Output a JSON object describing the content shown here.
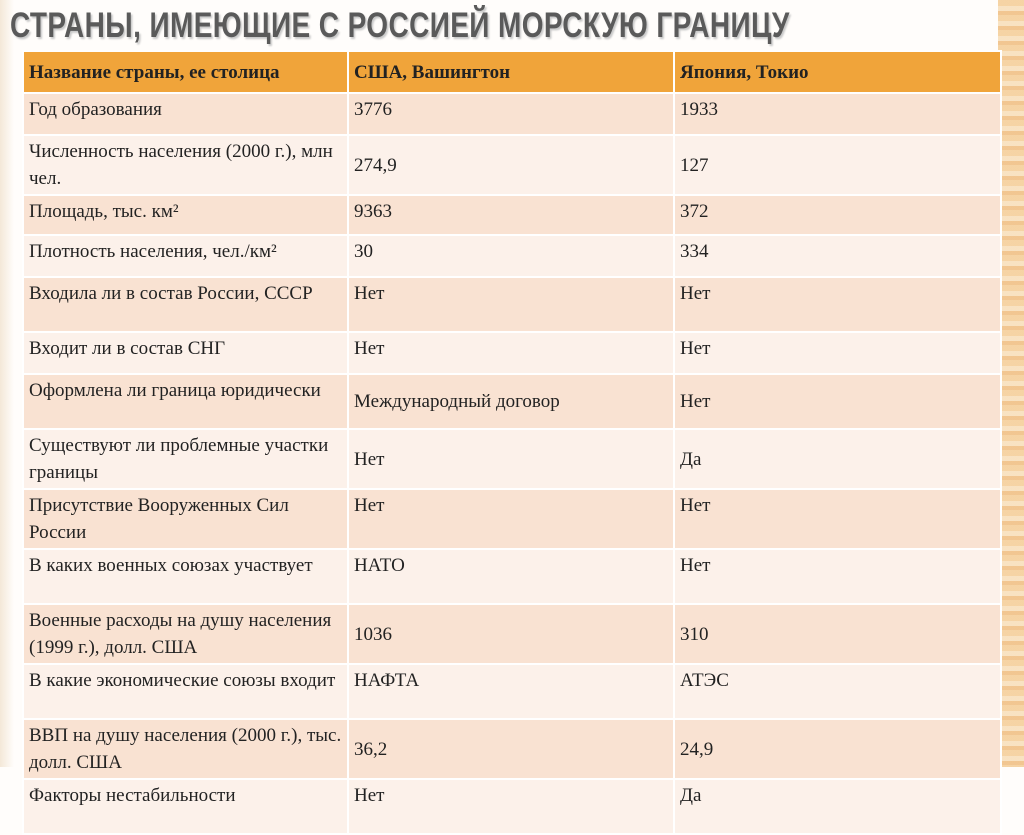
{
  "title": "СТРАНЫ, ИМЕЮЩИЕ С РОССИЕЙ МОРСКУЮ ГРАНИЦУ",
  "table": {
    "header": [
      "Название страны, ее столица",
      "США, Вашингтон",
      "Япония, Токио"
    ],
    "rows": [
      [
        "Год образования",
        "3776",
        "1933"
      ],
      [
        "Численность населения (2000 г.), млн чел.",
        "274,9",
        "127"
      ],
      [
        "Площадь, тыс. км²",
        "9363",
        "372"
      ],
      [
        "Плотность населения, чел./км²",
        "30",
        "334"
      ],
      [
        "Входила ли в состав России, СССР",
        "Нет",
        "Нет"
      ],
      [
        "Входит ли в состав СНГ",
        "Нет",
        "Нет"
      ],
      [
        "Оформлена ли граница юридически",
        "Международный договор",
        "Нет"
      ],
      [
        "Существуют ли проблемные участки границы",
        "Нет",
        "Да"
      ],
      [
        "Присутствие Вооруженных Сил России",
        "Нет",
        "Нет"
      ],
      [
        "В каких военных союзах участвует",
        "НАТО",
        "Нет"
      ],
      [
        "Военные расходы на душу населения (1999 г.), долл. США",
        "1036",
        "310"
      ],
      [
        "В какие экономические союзы входит",
        "НАФТА",
        "АТЭС"
      ],
      [
        "ВВП на душу населения (2000 г.), тыс. долл. США",
        "36,2",
        "24,9"
      ],
      [
        "Факторы нестабильности",
        "Нет",
        "Да"
      ]
    ]
  }
}
